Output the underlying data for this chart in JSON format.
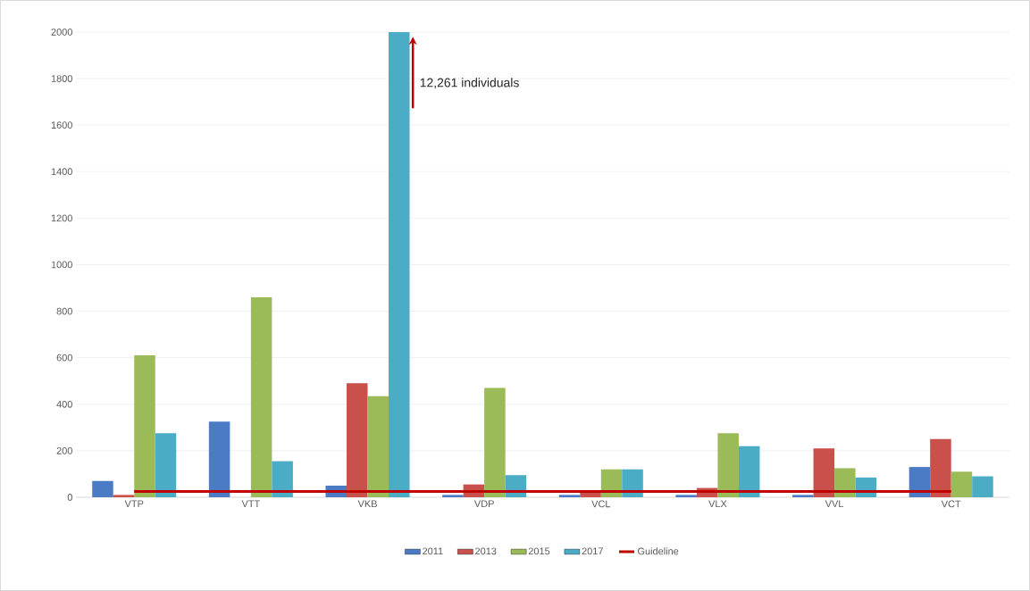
{
  "chart_data": {
    "type": "bar",
    "categories": [
      "VTP",
      "VTT",
      "VKB",
      "VDP",
      "VCL",
      "VLX",
      "VVL",
      "VCT"
    ],
    "series": [
      {
        "name": "2011",
        "color": "#4a7bc4",
        "values": [
          70,
          325,
          50,
          10,
          10,
          10,
          10,
          130
        ]
      },
      {
        "name": "2013",
        "color": "#c9504b",
        "values": [
          10,
          null,
          490,
          55,
          30,
          40,
          210,
          250
        ]
      },
      {
        "name": "2015",
        "color": "#9bbb59",
        "values": [
          610,
          860,
          435,
          470,
          120,
          275,
          125,
          110
        ]
      },
      {
        "name": "2017",
        "color": "#4bacc6",
        "values": [
          275,
          155,
          2000,
          95,
          120,
          220,
          85,
          90
        ]
      },
      {
        "name": "Guideline",
        "type": "line",
        "color": "#c00000",
        "values": [
          25,
          25,
          25,
          25,
          25,
          25,
          25,
          25
        ]
      }
    ],
    "annotations": [
      "12,261 individuals"
    ],
    "ylim": [
      0,
      2000
    ],
    "yticks": [
      0,
      200,
      400,
      600,
      800,
      1000,
      1200,
      1400,
      1600,
      1800,
      2000
    ],
    "grid": "y",
    "legend": "bottom"
  }
}
